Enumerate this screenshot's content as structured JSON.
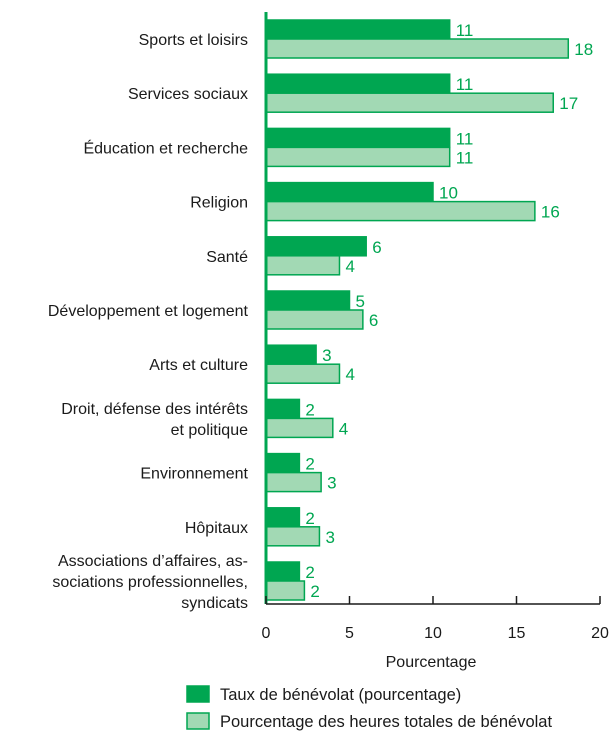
{
  "chart_data": {
    "type": "bar",
    "orientation": "horizontal",
    "categories": [
      "Sports et loisirs",
      "Services sociaux",
      "Éducation et recherche",
      "Religion",
      "Santé",
      "Développement et logement",
      "Arts et culture",
      "Droit, défense des intérêts et politique",
      "Environnement",
      "Hôpitaux",
      "Associations d’affaires, associations professionnelles, syndicats"
    ],
    "category_label_lines": [
      [
        "Sports et loisirs"
      ],
      [
        "Services sociaux"
      ],
      [
        "Éducation et recherche"
      ],
      [
        "Religion"
      ],
      [
        "Santé"
      ],
      [
        "Développement et logement"
      ],
      [
        "Arts et culture"
      ],
      [
        "Droit, défense des intérêts",
        "et politique"
      ],
      [
        "Environnement"
      ],
      [
        "Hôpitaux"
      ],
      [
        "Associations d’affaires, as-",
        "sociations professionnelles,",
        "syndicats"
      ]
    ],
    "series": [
      {
        "name": "Taux de bénévolat (pourcentage)",
        "values": [
          11,
          11,
          11,
          10,
          6,
          5,
          3,
          2,
          2,
          2,
          2
        ],
        "labels": [
          "11",
          "11",
          "11",
          "10",
          "6",
          "5",
          "3",
          "2",
          "2",
          "2",
          "2"
        ],
        "color": "#00a651"
      },
      {
        "name": "Pourcentage des heures totales de bénévolat",
        "values": [
          18.1,
          17.2,
          11,
          16.1,
          4.4,
          5.8,
          4.4,
          4,
          3.3,
          3.2,
          2.3
        ],
        "labels": [
          "18",
          "17",
          "11",
          "16",
          "4",
          "6",
          "4",
          "4",
          "3",
          "3",
          "2"
        ],
        "color": "#a2d9b4",
        "edge": "#00a651"
      }
    ],
    "xlabel": "Pourcentage",
    "xlim": [
      0,
      20
    ],
    "xticks": [
      "0",
      "5",
      "10",
      "15",
      "20"
    ],
    "grid": false,
    "legend_position": "bottom"
  }
}
